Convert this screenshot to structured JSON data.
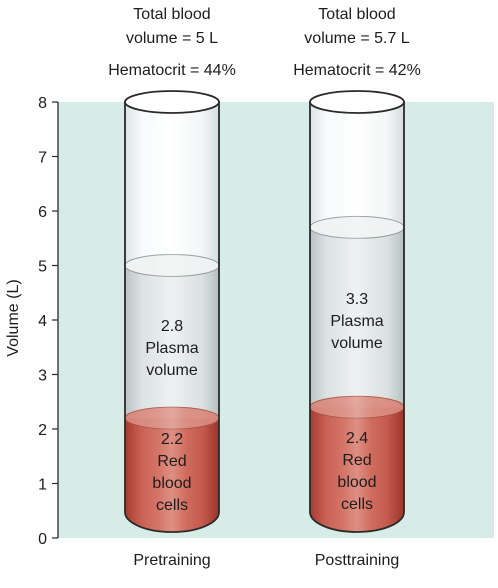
{
  "chart_data": {
    "type": "bar",
    "xlabel": "",
    "ylabel": "Volume (L)",
    "ylim": [
      0,
      8
    ],
    "yticks": [
      "0",
      "1",
      "2",
      "3",
      "4",
      "5",
      "6",
      "7",
      "8"
    ],
    "categories": [
      "Pretraining",
      "Posttraining"
    ],
    "header_lines": [
      [
        "Total blood",
        "volume = 5 L",
        "Hematocrit = 44%"
      ],
      [
        "Total blood",
        "volume = 5.7 L",
        "Hematocrit = 42%"
      ]
    ],
    "series": [
      {
        "name": "Red blood cells",
        "values": [
          2.2,
          2.4
        ],
        "label_lines": [
          [
            "2.2",
            "Red",
            "blood",
            "cells"
          ],
          [
            "2.4",
            "Red",
            "blood",
            "cells"
          ]
        ]
      },
      {
        "name": "Plasma volume",
        "values": [
          2.8,
          3.3
        ],
        "label_lines": [
          [
            "2.8",
            "Plasma",
            "volume"
          ],
          [
            "3.3",
            "Plasma",
            "volume"
          ]
        ]
      }
    ],
    "totals": [
      5,
      5.7
    ],
    "colors": {
      "plot_background": "#d7ebe7",
      "tube_glass": "#eef3f2",
      "tube_outline": "#2a2a2a",
      "plasma": "#cfd8d6",
      "red_blood_cells": "#c45648",
      "red_dark": "#9f3428",
      "text": "#1d1d1d"
    }
  }
}
